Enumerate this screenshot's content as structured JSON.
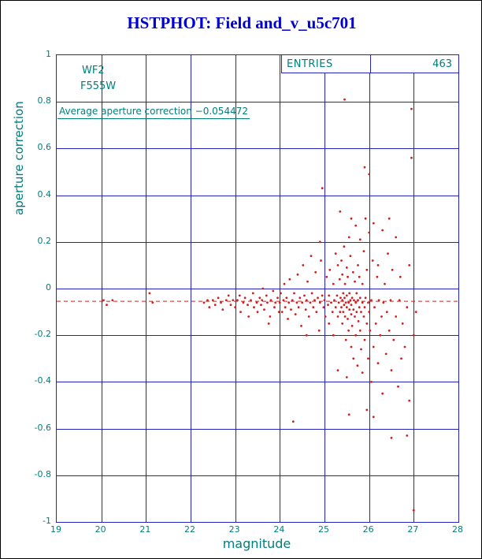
{
  "colors": {
    "title": "#0000cc",
    "grid": "#2323c0",
    "axis_text": "#007d7d",
    "points": "#cf2020",
    "average_line": "#cf2020",
    "background": "#ffffff",
    "page_border": "#000000"
  },
  "chart_data": {
    "type": "scatter",
    "title": "HSTPHOT: Field and_v_u5c701",
    "xlabel": "magnitude",
    "ylabel": "aperture correction",
    "xlim": [
      19,
      28
    ],
    "ylim": [
      -1,
      1
    ],
    "xticks": [
      19,
      20,
      21,
      22,
      23,
      24,
      25,
      26,
      27,
      28
    ],
    "yticks": [
      -1,
      -0.8,
      -0.6,
      -0.4,
      -0.2,
      0,
      0.2,
      0.4,
      0.6,
      0.8,
      1
    ],
    "grid": true,
    "legend_position": "none",
    "detector_label": "WF2",
    "filter_label": "F555W",
    "annotation": "Average aperture correction −0.054472",
    "average_correction": -0.054472,
    "entries_label": "ENTRIES",
    "entries_value": "463",
    "points": [
      [
        20.05,
        -0.05
      ],
      [
        20.12,
        -0.07
      ],
      [
        20.25,
        -0.05
      ],
      [
        21.08,
        -0.02
      ],
      [
        21.15,
        -0.06
      ],
      [
        22.3,
        -0.06
      ],
      [
        22.38,
        -0.05
      ],
      [
        22.42,
        -0.08
      ],
      [
        22.5,
        -0.05
      ],
      [
        22.55,
        -0.07
      ],
      [
        22.62,
        -0.04
      ],
      [
        22.68,
        -0.06
      ],
      [
        22.72,
        -0.09
      ],
      [
        22.8,
        -0.05
      ],
      [
        22.85,
        -0.03
      ],
      [
        22.9,
        -0.07
      ],
      [
        22.95,
        -0.05
      ],
      [
        23.0,
        -0.08
      ],
      [
        23.05,
        -0.05
      ],
      [
        23.1,
        -0.03
      ],
      [
        23.12,
        -0.1
      ],
      [
        23.18,
        -0.06
      ],
      [
        23.22,
        -0.04
      ],
      [
        23.28,
        -0.07
      ],
      [
        23.3,
        -0.12
      ],
      [
        23.35,
        -0.05
      ],
      [
        23.4,
        -0.02
      ],
      [
        23.42,
        -0.08
      ],
      [
        23.48,
        -0.06
      ],
      [
        23.5,
        -0.1
      ],
      [
        23.55,
        -0.04
      ],
      [
        23.58,
        -0.07
      ],
      [
        23.6,
        -0.05
      ],
      [
        23.62,
        0.0
      ],
      [
        23.65,
        -0.09
      ],
      [
        23.7,
        -0.03
      ],
      [
        23.72,
        -0.06
      ],
      [
        23.75,
        -0.15
      ],
      [
        23.78,
        -0.12
      ],
      [
        23.8,
        -0.05
      ],
      [
        23.85,
        -0.01
      ],
      [
        23.88,
        -0.08
      ],
      [
        23.9,
        -0.06
      ],
      [
        23.95,
        -0.04
      ],
      [
        23.98,
        -0.1
      ],
      [
        24.0,
        -0.06
      ],
      [
        24.02,
        -0.02
      ],
      [
        24.05,
        -0.1
      ],
      [
        24.08,
        -0.05
      ],
      [
        24.1,
        0.02
      ],
      [
        24.12,
        -0.08
      ],
      [
        24.15,
        -0.04
      ],
      [
        24.18,
        -0.13
      ],
      [
        24.2,
        -0.06
      ],
      [
        24.22,
        0.04
      ],
      [
        24.25,
        -0.09
      ],
      [
        24.28,
        -0.05
      ],
      [
        24.3,
        -0.57
      ],
      [
        24.32,
        -0.02
      ],
      [
        24.35,
        -0.11
      ],
      [
        24.38,
        -0.06
      ],
      [
        24.4,
        0.06
      ],
      [
        24.42,
        -0.08
      ],
      [
        24.45,
        -0.04
      ],
      [
        24.48,
        -0.16
      ],
      [
        24.5,
        -0.06
      ],
      [
        24.52,
        0.1
      ],
      [
        24.55,
        -0.03
      ],
      [
        24.58,
        -0.09
      ],
      [
        24.6,
        -0.2
      ],
      [
        24.6,
        -0.05
      ],
      [
        24.62,
        0.03
      ],
      [
        24.65,
        -0.12
      ],
      [
        24.68,
        -0.06
      ],
      [
        24.7,
        0.14
      ],
      [
        24.72,
        -0.02
      ],
      [
        24.75,
        -0.08
      ],
      [
        24.78,
        -0.05
      ],
      [
        24.8,
        0.07
      ],
      [
        24.82,
        -0.1
      ],
      [
        24.85,
        -0.04
      ],
      [
        24.88,
        -0.18
      ],
      [
        24.9,
        -0.06
      ],
      [
        24.9,
        0.2
      ],
      [
        24.92,
        0.12
      ],
      [
        24.95,
        0.43
      ],
      [
        24.95,
        -0.03
      ],
      [
        24.98,
        -0.08
      ],
      [
        25.0,
        -0.05
      ],
      [
        25.02,
        -0.12
      ],
      [
        25.05,
        0.05
      ],
      [
        25.08,
        -0.07
      ],
      [
        25.1,
        -0.03
      ],
      [
        25.1,
        -0.15
      ],
      [
        25.12,
        0.08
      ],
      [
        25.15,
        -0.06
      ],
      [
        25.18,
        -0.1
      ],
      [
        25.2,
        0.02
      ],
      [
        25.2,
        -0.2
      ],
      [
        25.22,
        -0.05
      ],
      [
        25.25,
        0.15
      ],
      [
        25.25,
        -0.08
      ],
      [
        25.28,
        -0.03
      ],
      [
        25.3,
        -0.35
      ],
      [
        25.3,
        0.1
      ],
      [
        25.3,
        -0.12
      ],
      [
        25.32,
        -0.06
      ],
      [
        25.34,
        0.04
      ],
      [
        25.35,
        -0.1
      ],
      [
        25.35,
        0.33
      ],
      [
        25.36,
        -0.04
      ],
      [
        25.38,
        -0.08
      ],
      [
        25.38,
        0.12
      ],
      [
        25.4,
        -0.05
      ],
      [
        25.4,
        -0.15
      ],
      [
        25.4,
        0.06
      ],
      [
        25.42,
        -0.02
      ],
      [
        25.42,
        -0.1
      ],
      [
        25.44,
        -0.07
      ],
      [
        25.44,
        0.18
      ],
      [
        25.45,
        0.81
      ],
      [
        25.45,
        -0.04
      ],
      [
        25.46,
        -0.12
      ],
      [
        25.46,
        0.02
      ],
      [
        25.48,
        -0.06
      ],
      [
        25.48,
        -0.22
      ],
      [
        25.5,
        -0.38
      ],
      [
        25.5,
        0.09
      ],
      [
        25.5,
        -0.08
      ],
      [
        25.5,
        -0.03
      ],
      [
        25.52,
        -0.13
      ],
      [
        25.52,
        0.05
      ],
      [
        25.54,
        -0.06
      ],
      [
        25.54,
        -0.18
      ],
      [
        25.55,
        -0.54
      ],
      [
        25.55,
        0.22
      ],
      [
        25.56,
        -0.02
      ],
      [
        25.56,
        -0.09
      ],
      [
        25.58,
        -0.05
      ],
      [
        25.58,
        0.14
      ],
      [
        25.6,
        -0.11
      ],
      [
        25.6,
        0.3
      ],
      [
        25.6,
        -0.25
      ],
      [
        25.6,
        -0.07
      ],
      [
        25.62,
        -0.04
      ],
      [
        25.62,
        -0.16
      ],
      [
        25.64,
        0.07
      ],
      [
        25.65,
        -0.09
      ],
      [
        25.65,
        -0.3
      ],
      [
        25.66,
        -0.05
      ],
      [
        25.68,
        0.03
      ],
      [
        25.68,
        -0.12
      ],
      [
        25.7,
        0.27
      ],
      [
        25.7,
        -0.06
      ],
      [
        25.7,
        -0.2
      ],
      [
        25.72,
        -0.02
      ],
      [
        25.72,
        -0.1
      ],
      [
        25.74,
        -0.33
      ],
      [
        25.75,
        0.1
      ],
      [
        25.75,
        -0.05
      ],
      [
        25.76,
        -0.14
      ],
      [
        25.78,
        0.05
      ],
      [
        25.78,
        -0.08
      ],
      [
        25.8,
        0.21
      ],
      [
        25.8,
        -0.04
      ],
      [
        25.8,
        -0.18
      ],
      [
        25.82,
        -0.1
      ],
      [
        25.82,
        -0.26
      ],
      [
        25.85,
        -0.36
      ],
      [
        25.85,
        0.02
      ],
      [
        25.85,
        -0.06
      ],
      [
        25.88,
        -0.12
      ],
      [
        25.88,
        0.16
      ],
      [
        25.9,
        0.52
      ],
      [
        25.9,
        -0.08
      ],
      [
        25.9,
        -0.22
      ],
      [
        25.92,
        0.3
      ],
      [
        25.92,
        -0.04
      ],
      [
        25.95,
        -0.52
      ],
      [
        25.95,
        -0.15
      ],
      [
        25.95,
        0.08
      ],
      [
        25.98,
        -0.06
      ],
      [
        25.98,
        -0.3
      ],
      [
        26.0,
        0.49
      ],
      [
        26.0,
        0.24
      ],
      [
        26.0,
        -0.1
      ],
      [
        26.02,
        -0.18
      ],
      [
        26.05,
        -0.05
      ],
      [
        26.05,
        -0.4
      ],
      [
        26.08,
        0.12
      ],
      [
        26.1,
        0.28
      ],
      [
        26.1,
        -0.55
      ],
      [
        26.1,
        -0.25
      ],
      [
        26.12,
        -0.08
      ],
      [
        26.15,
        -0.15
      ],
      [
        26.18,
        0.05
      ],
      [
        26.2,
        -0.32
      ],
      [
        26.2,
        0.1
      ],
      [
        26.22,
        -0.05
      ],
      [
        26.25,
        -0.2
      ],
      [
        26.28,
        -0.12
      ],
      [
        26.3,
        0.25
      ],
      [
        26.3,
        -0.45
      ],
      [
        26.32,
        -0.06
      ],
      [
        26.35,
        0.02
      ],
      [
        26.38,
        -0.28
      ],
      [
        26.4,
        -0.1
      ],
      [
        26.42,
        0.15
      ],
      [
        26.45,
        0.3
      ],
      [
        26.45,
        -0.18
      ],
      [
        26.48,
        -0.05
      ],
      [
        26.5,
        -0.64
      ],
      [
        26.5,
        -0.35
      ],
      [
        26.52,
        0.08
      ],
      [
        26.55,
        -0.22
      ],
      [
        26.6,
        0.22
      ],
      [
        26.6,
        -0.12
      ],
      [
        26.65,
        -0.42
      ],
      [
        26.68,
        -0.05
      ],
      [
        26.7,
        0.05
      ],
      [
        26.72,
        -0.3
      ],
      [
        26.75,
        -0.15
      ],
      [
        26.8,
        -0.25
      ],
      [
        26.85,
        -0.63
      ],
      [
        26.85,
        -0.08
      ],
      [
        26.9,
        -0.48
      ],
      [
        26.9,
        0.1
      ],
      [
        26.95,
        0.77
      ],
      [
        26.95,
        0.56
      ],
      [
        27.0,
        -0.95
      ],
      [
        27.0,
        -0.2
      ],
      [
        27.05,
        -0.1
      ]
    ]
  }
}
